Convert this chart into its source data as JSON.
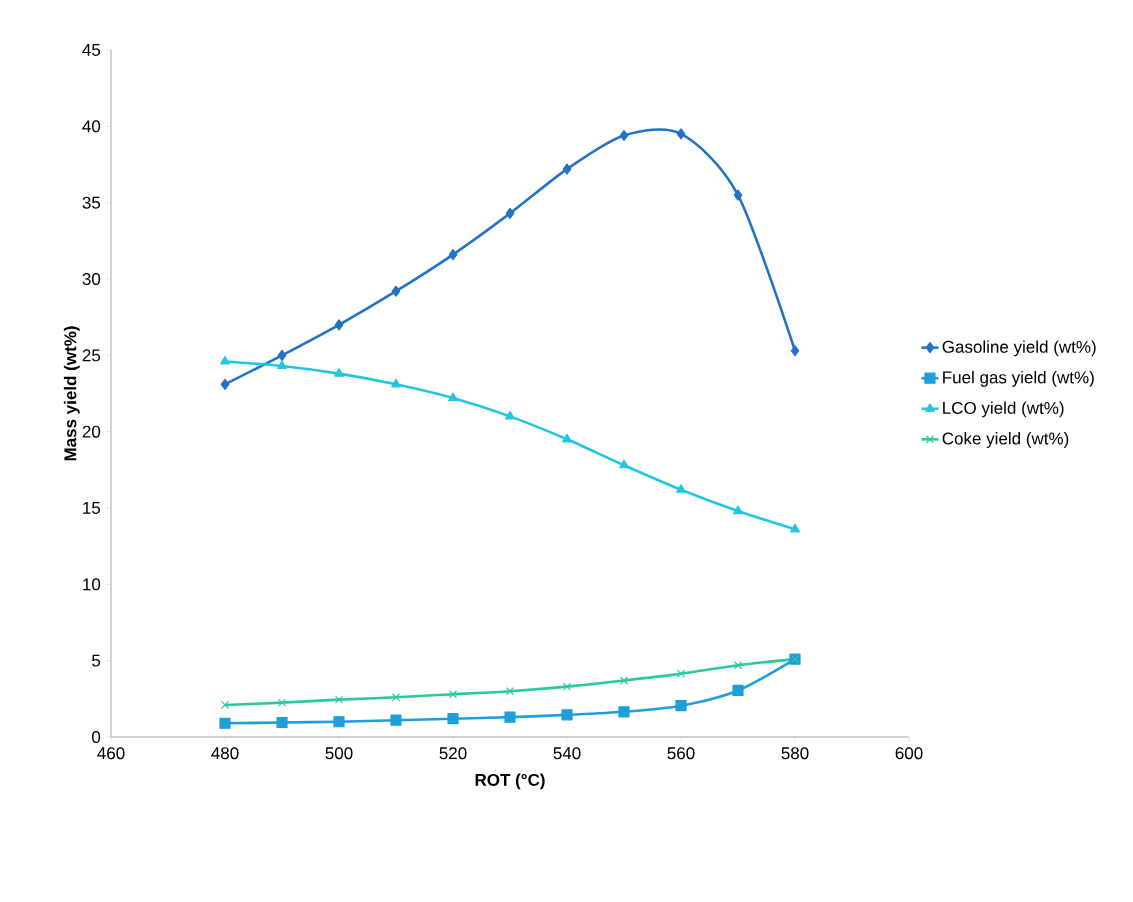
{
  "chart_data": {
    "type": "line",
    "xlabel": "ROT (°C)",
    "ylabel": "Mass yield (wt%)",
    "x": [
      480,
      490,
      500,
      510,
      520,
      530,
      540,
      550,
      560,
      570,
      580
    ],
    "series": [
      {
        "name": "Gasoline yield (wt%)",
        "color": "#2272c6",
        "marker": "diamond",
        "values": [
          23.1,
          25.0,
          27.0,
          29.2,
          31.6,
          34.3,
          37.2,
          39.4,
          39.5,
          35.5,
          25.3
        ]
      },
      {
        "name": "Fuel gas yield (wt%)",
        "color": "#1f9fda",
        "marker": "square",
        "values": [
          0.9,
          0.95,
          1.0,
          1.1,
          1.2,
          1.3,
          1.45,
          1.65,
          2.05,
          3.05,
          5.1
        ]
      },
      {
        "name": "LCO yield (wt%)",
        "color": "#21c6de",
        "marker": "triangle",
        "values": [
          24.6,
          24.3,
          23.8,
          23.1,
          22.2,
          21.0,
          19.5,
          17.8,
          16.2,
          14.8,
          13.6
        ]
      },
      {
        "name": "Coke yield (wt%)",
        "color": "#2ac99e",
        "marker": "cross",
        "values": [
          2.1,
          2.25,
          2.45,
          2.6,
          2.8,
          3.0,
          3.3,
          3.7,
          4.15,
          4.7,
          5.1
        ]
      }
    ],
    "xlim": [
      460,
      600
    ],
    "xticks": [
      460,
      480,
      500,
      520,
      540,
      560,
      580,
      600
    ],
    "ylim": [
      0,
      45
    ],
    "yticks": [
      0,
      5,
      10,
      15,
      20,
      25,
      30,
      35,
      40,
      45
    ],
    "grid": false,
    "legend": "right",
    "line_style": "solid"
  }
}
